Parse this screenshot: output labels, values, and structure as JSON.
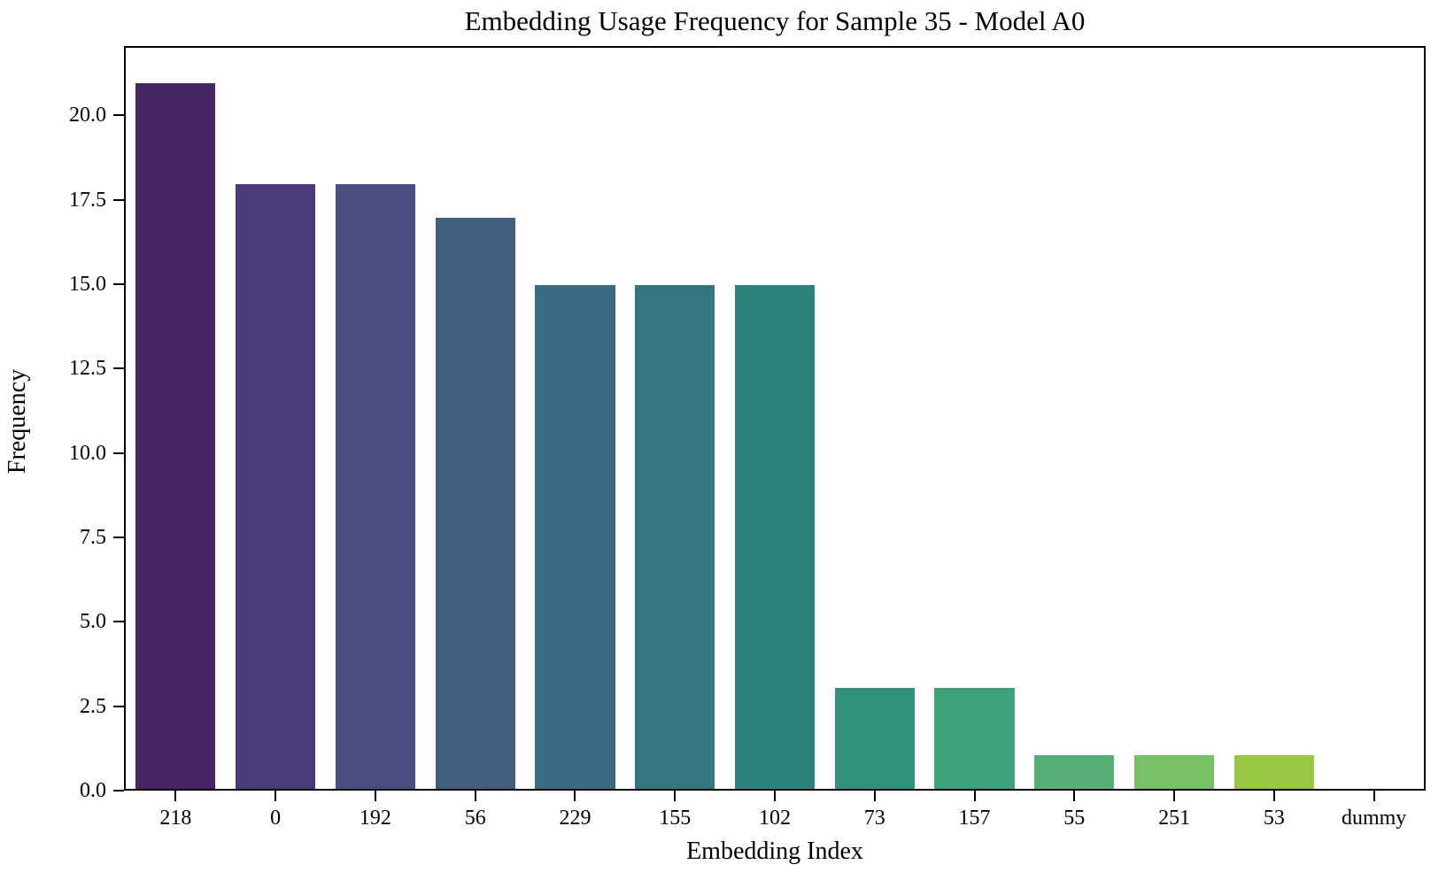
{
  "title": "Embedding Usage Frequency for Sample 35 - Model A0",
  "chart_data": {
    "type": "bar",
    "title": "Embedding Usage Frequency for Sample 35 - Model A0",
    "xlabel": "Embedding Index",
    "ylabel": "Frequency",
    "categories": [
      "218",
      "0",
      "192",
      "56",
      "229",
      "155",
      "102",
      "73",
      "157",
      "55",
      "251",
      "53",
      "dummy"
    ],
    "values": [
      21,
      18,
      18,
      17,
      15,
      15,
      15,
      3,
      3,
      1,
      1,
      1,
      0
    ],
    "bar_colors": [
      "#472666",
      "#4a3a78",
      "#4a4d80",
      "#415e81",
      "#3a6b82",
      "#32777f",
      "#2c837c",
      "#31917c",
      "#3da17a",
      "#56b075",
      "#76c065",
      "#9ac746",
      "#c3d94e"
    ],
    "ylim": [
      0,
      22.05
    ],
    "yticks": [
      0.0,
      2.5,
      5.0,
      7.5,
      10.0,
      12.5,
      15.0,
      17.5,
      20.0
    ],
    "ytick_labels": [
      "0.0",
      "2.5",
      "5.0",
      "7.5",
      "10.0",
      "12.5",
      "15.0",
      "17.5",
      "20.0"
    ],
    "grid": false,
    "legend_position": "none",
    "palette": "viridis",
    "bar_width_fraction": 0.8,
    "spine_color": "#000000",
    "background_color": "#ffffff"
  }
}
